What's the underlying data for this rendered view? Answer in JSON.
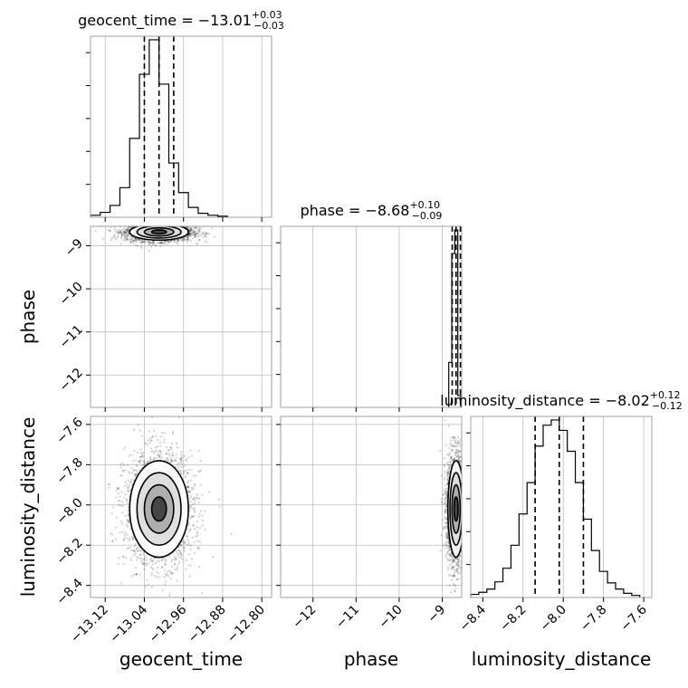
{
  "chart_data": {
    "type": "corner",
    "parameters": [
      "geocent_time",
      "phase",
      "luminosity_distance"
    ],
    "axis_labels": {
      "x": [
        "geocent_time",
        "phase",
        "luminosity_distance"
      ],
      "y": [
        "phase",
        "luminosity_distance"
      ]
    },
    "titles": [
      {
        "name": "geocent_time",
        "median": "−13.01",
        "plus": "+0.03",
        "minus": "−0.03"
      },
      {
        "name": "phase",
        "median": "−8.68",
        "plus": "+0.10",
        "minus": "−0.09"
      },
      {
        "name": "luminosity_distance",
        "median": "−8.02",
        "plus": "+0.12",
        "minus": "−0.12"
      }
    ],
    "ranges": {
      "geocent_time": [
        -13.15,
        -12.78
      ],
      "phase": [
        -12.75,
        -8.55
      ],
      "luminosity_distance": [
        -8.46,
        -7.56
      ]
    },
    "ticks": {
      "geocent_time": {
        "values": [
          -13.12,
          -13.04,
          -12.96,
          -12.88,
          -12.8
        ],
        "labels": [
          "−13.12",
          "−13.04",
          "−12.96",
          "−12.88",
          "−12.80"
        ]
      },
      "phase": {
        "values": [
          -12,
          -11,
          -10,
          -9
        ],
        "labels": [
          "−12",
          "−11",
          "−10",
          "−9"
        ]
      },
      "luminosity_distance": {
        "values": [
          -8.4,
          -8.2,
          -8.0,
          -7.8,
          -7.6
        ],
        "labels": [
          "−8.4",
          "−8.2",
          "−8.0",
          "−7.8",
          "−7.6"
        ]
      }
    },
    "quantiles": {
      "geocent_time": [
        -13.04,
        -13.01,
        -12.98
      ],
      "phase": [
        -8.77,
        -8.68,
        -8.58
      ],
      "luminosity_distance": [
        -8.14,
        -8.02,
        -7.9
      ]
    },
    "histograms": {
      "geocent_time": {
        "bin_edges": [
          -13.15,
          -13.13,
          -13.11,
          -13.09,
          -13.07,
          -13.05,
          -13.03,
          -13.01,
          -12.99,
          -12.97,
          -12.95,
          -12.93,
          -12.91,
          -12.89,
          -12.87
        ],
        "counts": [
          2,
          5,
          12,
          30,
          80,
          145,
          180,
          135,
          55,
          25,
          10,
          4,
          2,
          1
        ]
      },
      "phase": {
        "bin_edges": [
          -8.85,
          -8.78,
          -8.71,
          -8.64,
          -8.57
        ],
        "counts": [
          38,
          130,
          150,
          10
        ]
      },
      "luminosity_distance": {
        "bin_edges": [
          -8.46,
          -8.42,
          -8.38,
          -8.34,
          -8.3,
          -8.26,
          -8.22,
          -8.18,
          -8.14,
          -8.1,
          -8.06,
          -8.02,
          -7.98,
          -7.94,
          -7.9,
          -7.86,
          -7.82,
          -7.78,
          -7.74,
          -7.7,
          -7.66,
          -7.62
        ],
        "counts": [
          3,
          5,
          8,
          15,
          28,
          50,
          80,
          110,
          145,
          165,
          170,
          160,
          140,
          110,
          75,
          45,
          25,
          14,
          8,
          4,
          2
        ]
      }
    },
    "grid": true,
    "color": "#000000"
  }
}
